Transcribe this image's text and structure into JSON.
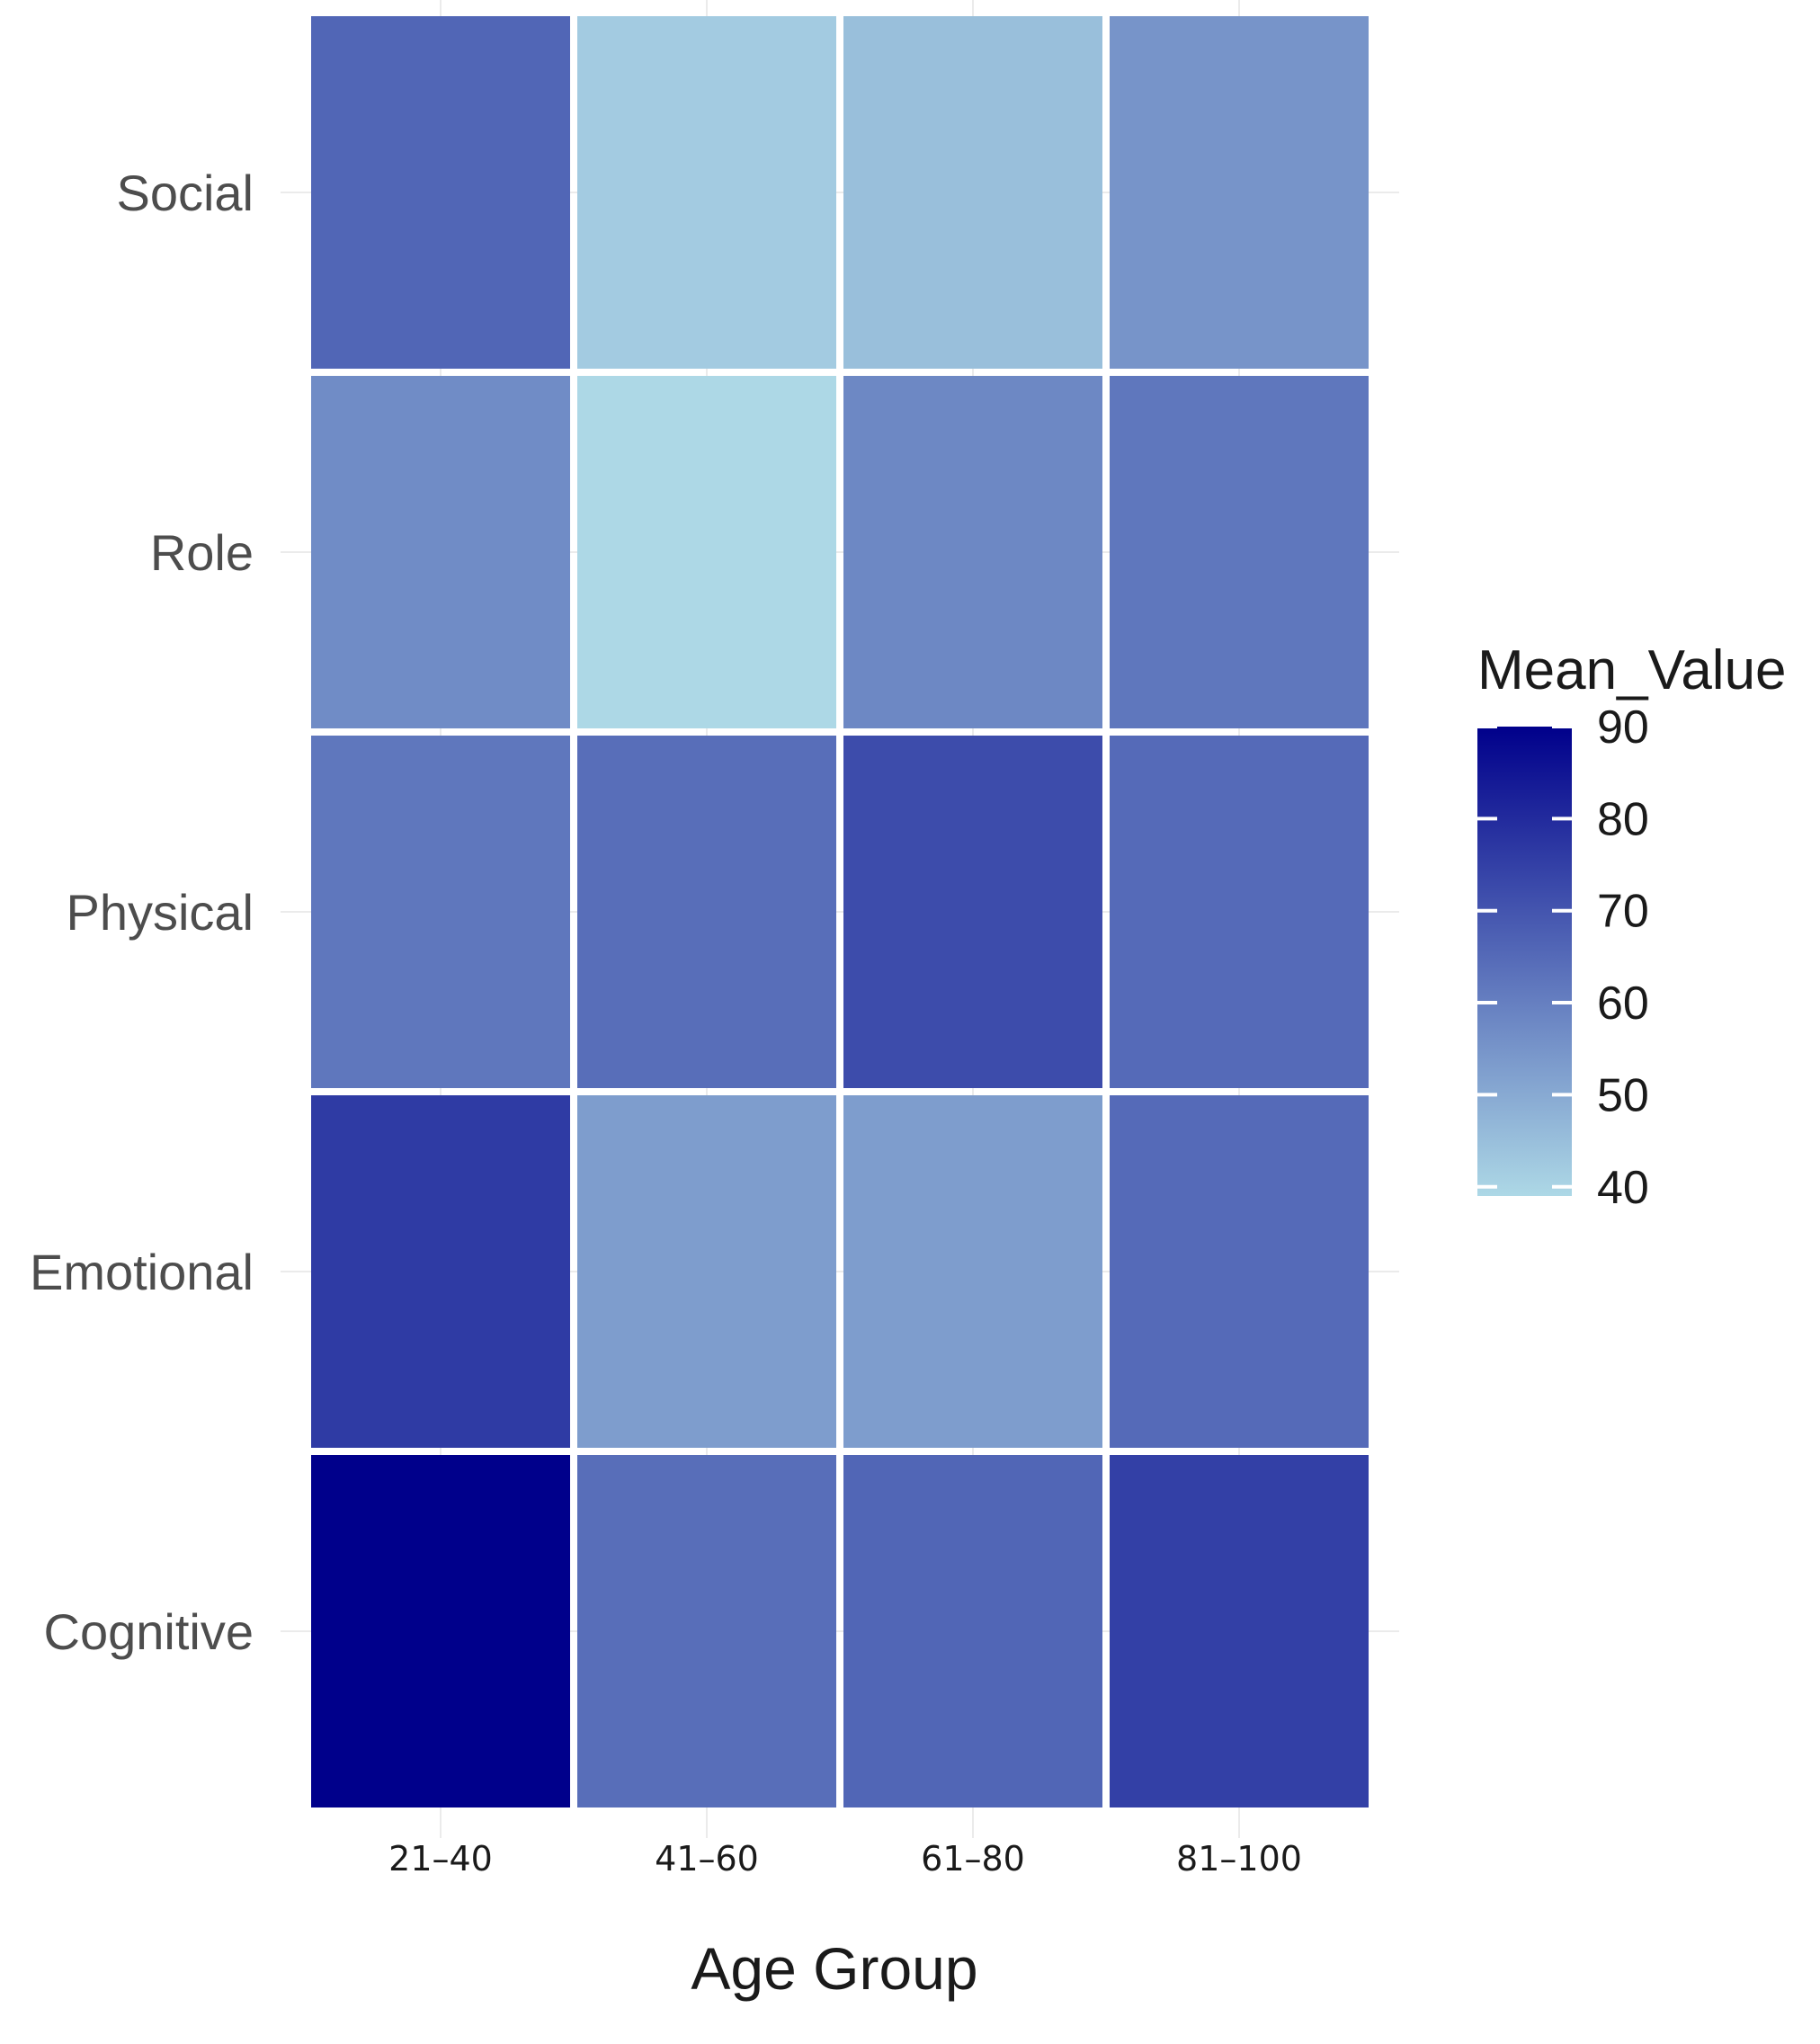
{
  "chart_data": {
    "type": "heatmap",
    "title": "",
    "xlabel": "Age Group",
    "ylabel": "",
    "x_categories": [
      "21–40",
      "41–60",
      "61–80",
      "81–100"
    ],
    "y_categories": [
      "Social",
      "Role",
      "Physical",
      "Emotional",
      "Cognitive"
    ],
    "values": [
      [
        66,
        42,
        45,
        55
      ],
      [
        57,
        39,
        58,
        62
      ],
      [
        62,
        64,
        72,
        65
      ],
      [
        76,
        53,
        53,
        65
      ],
      [
        90,
        64,
        66,
        75
      ]
    ],
    "legend": {
      "title": "Mean_Value",
      "ticks": [
        90,
        80,
        70,
        60,
        50,
        40
      ],
      "range": [
        39,
        90
      ],
      "low_color": "#add8e6",
      "high_color": "#00008b",
      "placement": "right"
    }
  }
}
